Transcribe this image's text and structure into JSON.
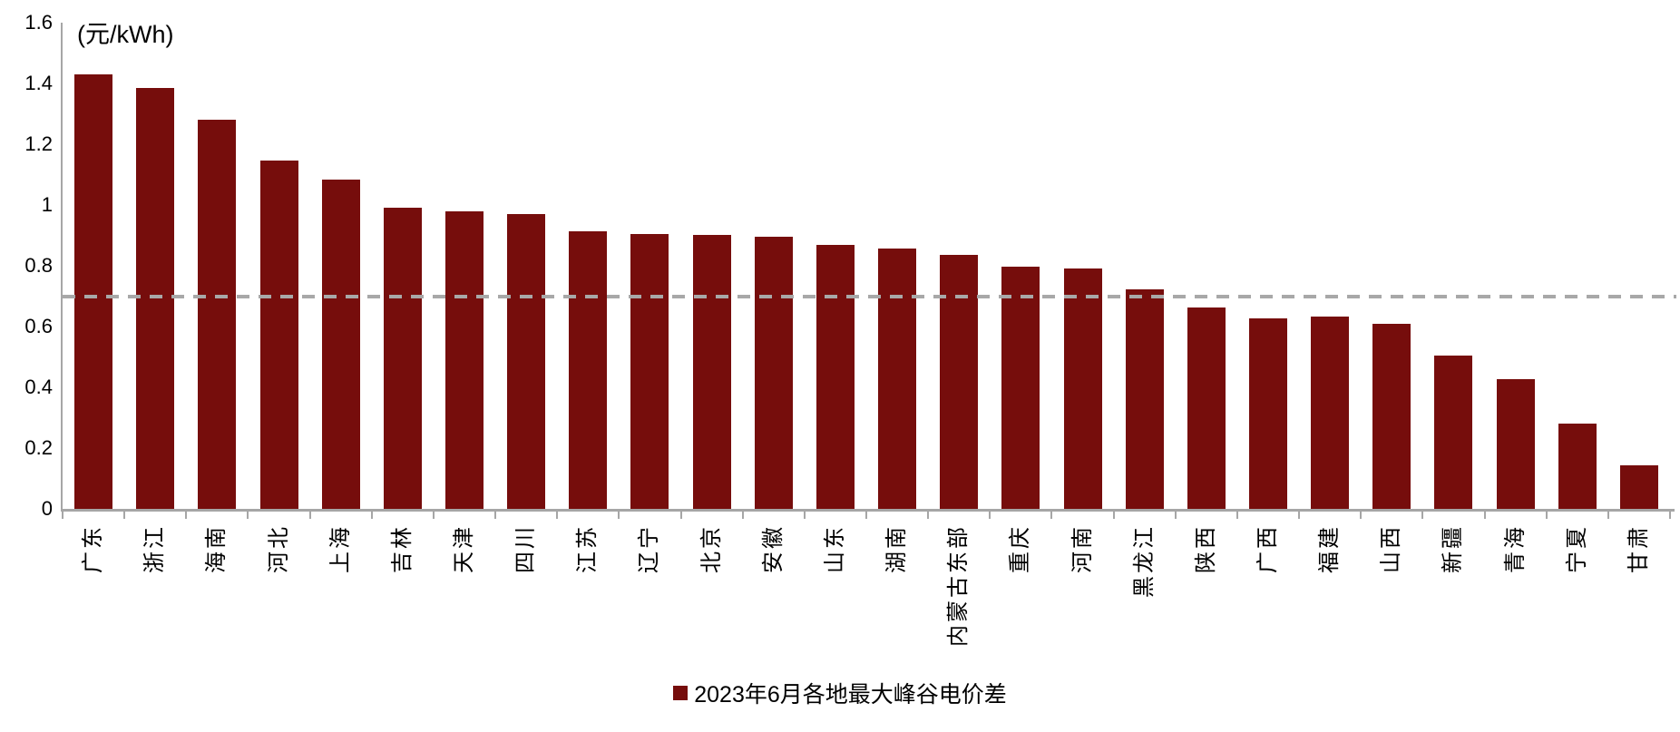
{
  "chart_data": {
    "type": "bar",
    "title": "",
    "unit_label": "(元/kWh)",
    "legend_label": "2023年6月各地最大峰谷电价差",
    "legend_position": "bottom-center",
    "grid": false,
    "ylim": [
      0,
      1.6
    ],
    "ytick_labels": [
      "0",
      "0.2",
      "0.4",
      "0.6",
      "0.8",
      "1",
      "1.2",
      "1.4",
      "1.6"
    ],
    "reference_line_value": 0.7,
    "categories": [
      "广东",
      "浙江",
      "海南",
      "河北",
      "上海",
      "吉林",
      "天津",
      "四川",
      "江苏",
      "辽宁",
      "北京",
      "安徽",
      "山东",
      "湖南",
      "内蒙古东部",
      "重庆",
      "河南",
      "黑龙江",
      "陕西",
      "广西",
      "福建",
      "山西",
      "新疆",
      "青海",
      "宁夏",
      "甘肃"
    ],
    "values": [
      1.43,
      1.385,
      1.28,
      1.145,
      1.085,
      0.99,
      0.98,
      0.97,
      0.912,
      0.905,
      0.902,
      0.895,
      0.868,
      0.858,
      0.836,
      0.798,
      0.792,
      0.723,
      0.662,
      0.628,
      0.632,
      0.608,
      0.505,
      0.428,
      0.282,
      0.142
    ],
    "colors": {
      "bar": "#760D0C",
      "reference_line": "#A8A8A8",
      "axis": "#A6A6A6",
      "text": "#000000"
    }
  }
}
